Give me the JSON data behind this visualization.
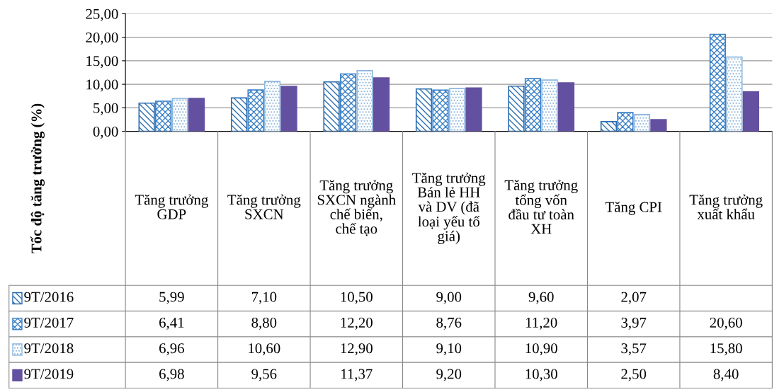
{
  "chart_data": {
    "type": "bar",
    "ylabel": "Tốc độ tăng trưởng (%)",
    "categories": [
      "Tăng trưởng GDP",
      "Tăng trưởng SXCN",
      "Tăng trưởng SXCN ngành chế biến, chế tạo",
      "Tăng trưởng Bán lẻ HH và DV (đã loại yếu tố giá)",
      "Tăng trưởng tổng vốn đầu tư toàn XH",
      "Tăng CPI",
      "Tăng trưởng xuất khẩu"
    ],
    "series": [
      {
        "name": "9T/2016",
        "color": "#2e6fb0",
        "values": [
          5.99,
          7.1,
          10.5,
          9.0,
          9.6,
          2.07,
          null
        ],
        "value_labels": [
          "5,99",
          "7,10",
          "10,50",
          "9,00",
          "9,60",
          "2,07",
          null
        ]
      },
      {
        "name": "9T/2017",
        "color": "#3d82c8",
        "values": [
          6.41,
          8.8,
          12.2,
          8.76,
          11.2,
          3.97,
          20.6
        ],
        "value_labels": [
          "6,41",
          "8,80",
          "12,20",
          "8,76",
          "11,20",
          "3,97",
          "20,60"
        ]
      },
      {
        "name": "9T/2018",
        "color": "#8fb8e0",
        "values": [
          6.96,
          10.6,
          12.9,
          9.1,
          10.9,
          3.57,
          15.8
        ],
        "value_labels": [
          "6,96",
          "10,60",
          "12,90",
          "9,10",
          "10,90",
          "3,57",
          "15,80"
        ]
      },
      {
        "name": "9T/2019",
        "color": "#6450a0",
        "values": [
          6.98,
          9.56,
          11.37,
          9.2,
          10.3,
          2.5,
          8.4
        ],
        "value_labels": [
          "6,98",
          "9,56",
          "11,37",
          "9,20",
          "10,30",
          "2,50",
          "8,40"
        ]
      }
    ],
    "ylim": [
      0,
      25
    ],
    "yticks": [
      {
        "value": 0,
        "label": "0,00"
      },
      {
        "value": 5,
        "label": "5,00"
      },
      {
        "value": 10,
        "label": "10,00"
      },
      {
        "value": 15,
        "label": "15,00"
      },
      {
        "value": 20,
        "label": "20,00"
      },
      {
        "value": 25,
        "label": "25,00"
      }
    ],
    "grid": "y",
    "legend": "bottom left"
  }
}
